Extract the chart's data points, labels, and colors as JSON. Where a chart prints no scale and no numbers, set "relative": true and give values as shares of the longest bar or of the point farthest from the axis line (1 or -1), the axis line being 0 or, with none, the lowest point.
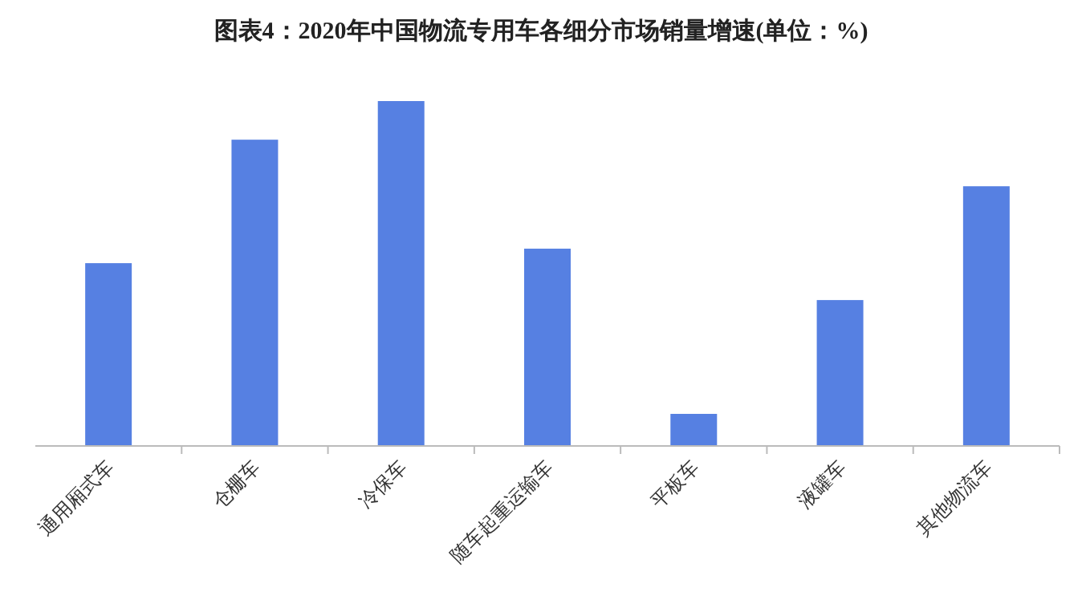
{
  "chart_data": {
    "type": "bar",
    "title": "图表4：2020年中国物流专用车各细分市场销量增速(单位：%)",
    "categories": [
      "通用厢式车",
      "仓栅车",
      "冷保车",
      "随车起重运输车",
      "平板车",
      "液罐车",
      "其他物流车"
    ],
    "values": [
      0.53,
      0.888,
      1,
      0.572,
      0.093,
      0.423,
      0.753
    ],
    "color": "#5680e2",
    "relative": true
  }
}
